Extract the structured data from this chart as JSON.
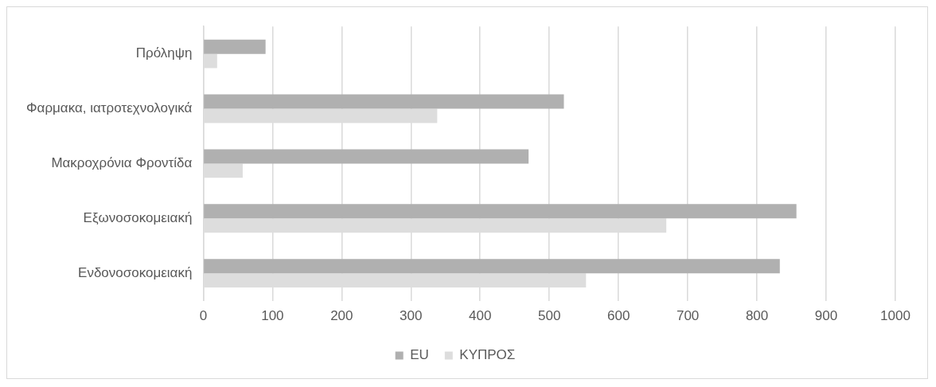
{
  "chart_data": {
    "type": "bar",
    "orientation": "horizontal",
    "categories": [
      "Πρόληψη",
      "Φαρμακα, ιατροτεχνολογικά",
      "Μακροχρόνια Φροντίδα",
      "Εξωνοσοκομειακή",
      "Ενδονοσοκομειακή"
    ],
    "series": [
      {
        "name": "EU",
        "color": "#b0b0b0",
        "values": [
          90,
          521,
          470,
          857,
          833
        ]
      },
      {
        "name": "ΚΥΠΡΟΣ",
        "color": "#dddddd",
        "values": [
          20,
          338,
          57,
          669,
          553
        ]
      }
    ],
    "xlim": [
      0,
      1000
    ],
    "xticks": [
      0,
      100,
      200,
      300,
      400,
      500,
      600,
      700,
      800,
      900,
      1000
    ],
    "grid": "x",
    "legend": "bottom"
  }
}
